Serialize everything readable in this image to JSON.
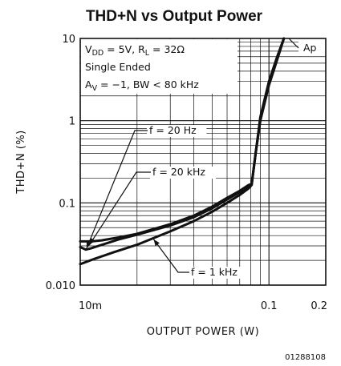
{
  "chart_data": {
    "type": "line",
    "title": "THD+N vs Output Power",
    "xlabel": "OUTPUT POWER (W)",
    "ylabel": "THD+N (%)",
    "xscale": "log",
    "yscale": "log",
    "xlim": [
      0.01,
      0.2
    ],
    "ylim": [
      0.01,
      10
    ],
    "x_tick_labels": [
      {
        "value": 0.01,
        "label": "10m"
      },
      {
        "value": 0.1,
        "label": "0.1"
      },
      {
        "value": 0.2,
        "label": "0.2"
      }
    ],
    "y_tick_labels": [
      {
        "value": 10,
        "label": "10"
      },
      {
        "value": 1,
        "label": "1"
      },
      {
        "value": 0.1,
        "label": "0.1"
      },
      {
        "value": 0.01,
        "label": "0.010"
      }
    ],
    "grid": true,
    "conditions": [
      {
        "segments": [
          [
            "V",
            ""
          ],
          [
            "DD",
            "sub"
          ],
          [
            " = 5V, R",
            ""
          ],
          [
            "L",
            "sub"
          ],
          [
            " = 32Ω",
            ""
          ]
        ]
      },
      {
        "segments": [
          [
            "Single Ended",
            ""
          ]
        ]
      },
      {
        "segments": [
          [
            "A",
            ""
          ],
          [
            "V",
            "sub"
          ],
          [
            " = −1, BW < 80 kHz",
            ""
          ]
        ]
      }
    ],
    "watermark": "Ap",
    "doc_id": "01288108",
    "series": [
      {
        "name": "f = 20 Hz",
        "points": [
          [
            0.01,
            0.034
          ],
          [
            0.0115,
            0.034
          ],
          [
            0.013,
            0.035
          ],
          [
            0.016,
            0.038
          ],
          [
            0.02,
            0.042
          ],
          [
            0.03,
            0.055
          ],
          [
            0.04,
            0.07
          ],
          [
            0.05,
            0.09
          ],
          [
            0.06,
            0.115
          ],
          [
            0.07,
            0.14
          ],
          [
            0.078,
            0.165
          ],
          [
            0.081,
            0.17
          ],
          [
            0.085,
            0.4
          ],
          [
            0.09,
            1.1
          ],
          [
            0.1,
            3.0
          ],
          [
            0.11,
            5.8
          ],
          [
            0.12,
            10
          ]
        ]
      },
      {
        "name": "f = 20 kHz",
        "points": [
          [
            0.01,
            0.029
          ],
          [
            0.0107,
            0.027
          ],
          [
            0.0114,
            0.028
          ],
          [
            0.0125,
            0.03
          ],
          [
            0.016,
            0.036
          ],
          [
            0.02,
            0.041
          ],
          [
            0.03,
            0.053
          ],
          [
            0.04,
            0.067
          ],
          [
            0.05,
            0.086
          ],
          [
            0.06,
            0.11
          ],
          [
            0.07,
            0.135
          ],
          [
            0.078,
            0.16
          ],
          [
            0.081,
            0.17
          ],
          [
            0.085,
            0.4
          ],
          [
            0.09,
            1.0
          ],
          [
            0.1,
            2.8
          ],
          [
            0.11,
            5.5
          ],
          [
            0.12,
            10
          ]
        ]
      },
      {
        "name": "f = 1 kHz",
        "points": [
          [
            0.01,
            0.018
          ],
          [
            0.012,
            0.021
          ],
          [
            0.015,
            0.025
          ],
          [
            0.02,
            0.031
          ],
          [
            0.03,
            0.045
          ],
          [
            0.04,
            0.06
          ],
          [
            0.05,
            0.078
          ],
          [
            0.06,
            0.1
          ],
          [
            0.07,
            0.125
          ],
          [
            0.078,
            0.15
          ],
          [
            0.081,
            0.165
          ],
          [
            0.085,
            0.4
          ],
          [
            0.09,
            1.0
          ],
          [
            0.1,
            2.7
          ],
          [
            0.11,
            5.3
          ],
          [
            0.12,
            10
          ]
        ]
      }
    ],
    "annotations": [
      {
        "text": "f = 20 Hz",
        "series": "f = 20 Hz",
        "target": [
          0.0108,
          0.028
        ]
      },
      {
        "text": "f = 20 kHz",
        "series": "f = 20 kHz",
        "target": [
          0.0112,
          0.031
        ]
      },
      {
        "text": "f = 1 kHz",
        "series": "f = 1 kHz",
        "target": [
          0.0245,
          0.036
        ]
      }
    ]
  }
}
